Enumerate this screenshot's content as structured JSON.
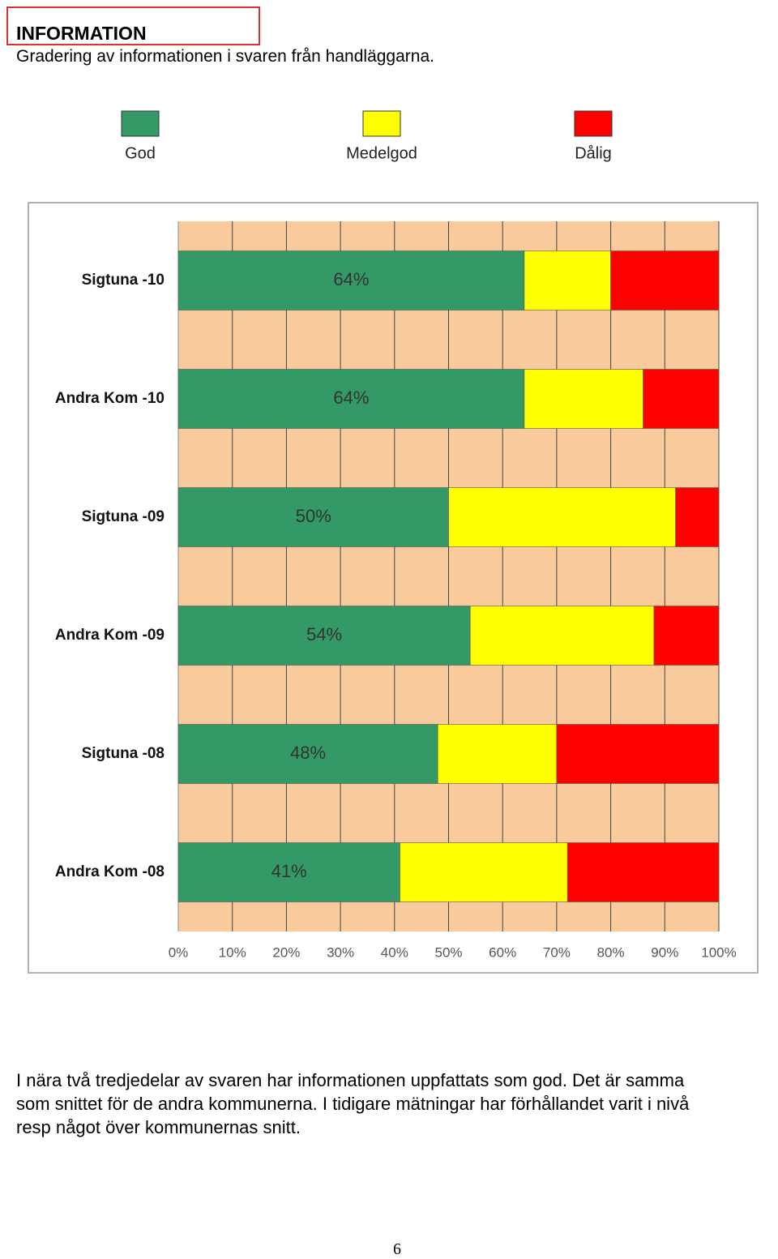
{
  "header": {
    "title": "INFORMATION",
    "subtitle": "Gradering av informationen i svaren från handläggarna."
  },
  "chart_data": {
    "type": "stacked-bar-horizontal",
    "categories": [
      "Sigtuna -10",
      "Andra Kom -10",
      "Sigtuna -09",
      "Andra Kom -09",
      "Sigtuna -08",
      "Andra Kom -08"
    ],
    "series": [
      {
        "name": "God",
        "color": "#339966",
        "values": [
          64,
          64,
          50,
          54,
          48,
          41
        ],
        "value_labels": [
          "64%",
          "64%",
          "50%",
          "54%",
          "48%",
          "41%"
        ]
      },
      {
        "name": "Medelgod",
        "color": "#ffff00",
        "values": [
          16,
          22,
          42,
          34,
          22,
          31
        ]
      },
      {
        "name": "Dålig",
        "color": "#ff0000",
        "values": [
          20,
          14,
          8,
          12,
          30,
          28
        ]
      }
    ],
    "xlim": [
      0,
      100
    ],
    "xticks": [
      {
        "value": 0,
        "label": "0%"
      },
      {
        "value": 10,
        "label": "10%"
      },
      {
        "value": 20,
        "label": "20%"
      },
      {
        "value": 30,
        "label": "30%"
      },
      {
        "value": 40,
        "label": "40%"
      },
      {
        "value": 50,
        "label": "50%"
      },
      {
        "value": 60,
        "label": "60%"
      },
      {
        "value": 70,
        "label": "70%"
      },
      {
        "value": 80,
        "label": "80%"
      },
      {
        "value": 90,
        "label": "90%"
      },
      {
        "value": 100,
        "label": "100%"
      }
    ],
    "grid": true,
    "plot_background": "#f9cb9c"
  },
  "body": {
    "lines": [
      "I nära två tredjedelar av svaren har informationen uppfattats som god. Det är samma",
      "som snittet för de andra kommunerna. I tidigare mätningar har förhållandet varit i nivå",
      "resp något över kommunernas snitt."
    ]
  },
  "footer": {
    "page_number": "6"
  }
}
